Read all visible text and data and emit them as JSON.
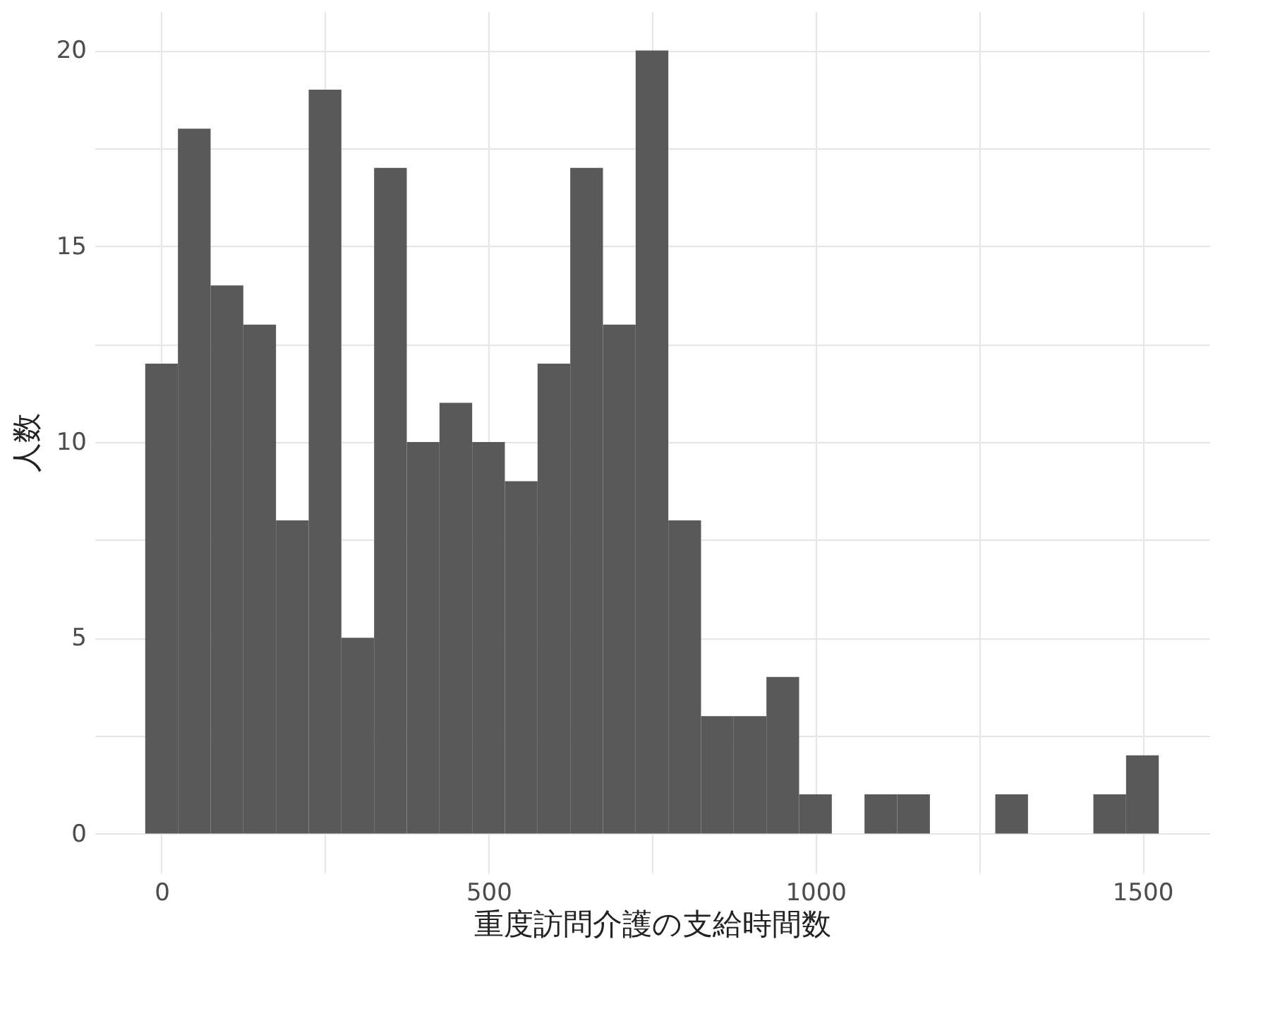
{
  "chart_data": {
    "type": "histogram",
    "xlabel": "重度訪問介護の支給時間数",
    "ylabel": "人数",
    "bins": [
      -25,
      25,
      75,
      125,
      175,
      225,
      275,
      325,
      375,
      425,
      475,
      525,
      575,
      625,
      675,
      725,
      775,
      825,
      875,
      925,
      975,
      1025,
      1075,
      1125,
      1175,
      1225,
      1275,
      1325,
      1375,
      1425,
      1475,
      1525
    ],
    "values": [
      12,
      18,
      14,
      13,
      8,
      19,
      5,
      17,
      10,
      11,
      10,
      9,
      12,
      17,
      13,
      20,
      8,
      3,
      3,
      4,
      1,
      0,
      1,
      1,
      0,
      0,
      1,
      0,
      0,
      1,
      2
    ],
    "color": "#595959",
    "xlim": [
      -102.5,
      1602.5
    ],
    "xticks": [
      0,
      {
        "value": 250,
        "label": null
      },
      500,
      {
        "value": 750,
        "label": null
      },
      1000,
      {
        "value": 1250,
        "label": null
      },
      1500
    ],
    "ylim": [
      -1,
      21
    ],
    "yticks": [
      0,
      {
        "value": 2.5,
        "label": null
      },
      5,
      {
        "value": 7.5,
        "label": null
      },
      10,
      {
        "value": 12.5,
        "label": null
      },
      15,
      {
        "value": 17.5,
        "label": null
      },
      20
    ],
    "grid": true
  }
}
